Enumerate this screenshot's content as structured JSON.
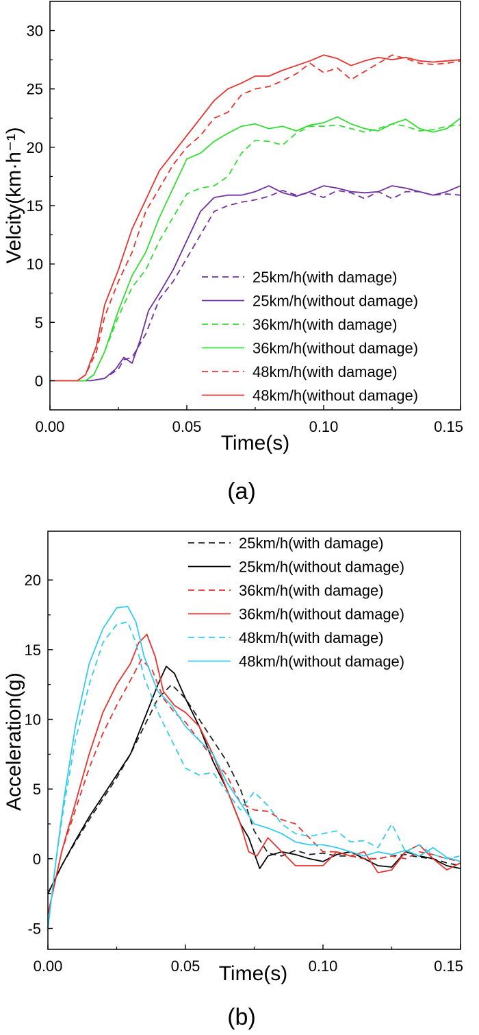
{
  "chart_data": [
    {
      "type": "line",
      "panel_label": "(a)",
      "title": "",
      "xlabel": "Time(s)",
      "ylabel": "Velcity(km·h⁻¹)",
      "xlim": [
        0,
        0.15
      ],
      "ylim": [
        -2.5,
        32.5
      ],
      "xticks": [
        "0.00",
        "0.05",
        "0.10",
        "0.15"
      ],
      "yticks": [
        "0",
        "5",
        "10",
        "15",
        "20",
        "25",
        "30"
      ],
      "xtick_values": [
        0,
        0.05,
        0.1,
        0.15
      ],
      "ytick_values": [
        0,
        5,
        10,
        15,
        20,
        25,
        30
      ],
      "legend_position": "bottom-right",
      "grid": false,
      "series": [
        {
          "name": "25km/h(with damage)",
          "color": "#7030a0",
          "dash": true,
          "x": [
            0,
            0.015,
            0.02,
            0.025,
            0.027,
            0.03,
            0.035,
            0.04,
            0.045,
            0.05,
            0.055,
            0.06,
            0.065,
            0.07,
            0.075,
            0.08,
            0.085,
            0.09,
            0.095,
            0.1,
            0.105,
            0.11,
            0.115,
            0.12,
            0.125,
            0.13,
            0.135,
            0.14,
            0.145,
            0.15
          ],
          "y": [
            0,
            0,
            0.2,
            1,
            1.8,
            2,
            4,
            7,
            8.5,
            10.5,
            12.5,
            14.5,
            15,
            15.3,
            15.5,
            15.8,
            16.3,
            15.9,
            16.1,
            15.7,
            16.3,
            16.1,
            15.6,
            16.2,
            15.6,
            16.2,
            16.2,
            15.9,
            16.0,
            15.9
          ]
        },
        {
          "name": "25km/h(without damage)",
          "color": "#7030a0",
          "dash": false,
          "x": [
            0,
            0.015,
            0.02,
            0.024,
            0.027,
            0.03,
            0.033,
            0.036,
            0.04,
            0.045,
            0.05,
            0.055,
            0.06,
            0.065,
            0.07,
            0.075,
            0.08,
            0.085,
            0.09,
            0.095,
            0.1,
            0.105,
            0.11,
            0.115,
            0.12,
            0.125,
            0.13,
            0.135,
            0.14,
            0.145,
            0.15
          ],
          "y": [
            0,
            0,
            0.2,
            1,
            2,
            1.5,
            3.5,
            6,
            7.5,
            9.5,
            12,
            14.5,
            15.7,
            15.9,
            15.9,
            16.2,
            16.7,
            16.1,
            15.8,
            16.2,
            16.7,
            16.5,
            16.2,
            16.1,
            16.2,
            16.7,
            16.5,
            16.2,
            15.9,
            16.2,
            16.7
          ]
        },
        {
          "name": "36km/h(with damage)",
          "color": "#33dd33",
          "dash": true,
          "x": [
            0,
            0.013,
            0.016,
            0.02,
            0.025,
            0.03,
            0.035,
            0.04,
            0.045,
            0.05,
            0.055,
            0.06,
            0.065,
            0.07,
            0.075,
            0.08,
            0.085,
            0.09,
            0.095,
            0.1,
            0.105,
            0.11,
            0.115,
            0.12,
            0.125,
            0.13,
            0.135,
            0.14,
            0.145,
            0.15
          ],
          "y": [
            0,
            0,
            0.5,
            2.5,
            5.5,
            8,
            9.5,
            12,
            14,
            16,
            16.5,
            16.7,
            17.5,
            19.5,
            20.6,
            20.5,
            20.2,
            21.2,
            21.8,
            21.8,
            21.9,
            21.6,
            21.3,
            21.6,
            22.0,
            21.8,
            21.4,
            21.5,
            21.8,
            21.9
          ]
        },
        {
          "name": "36km/h(without damage)",
          "color": "#33dd33",
          "dash": false,
          "x": [
            0,
            0.013,
            0.016,
            0.02,
            0.025,
            0.03,
            0.035,
            0.04,
            0.045,
            0.05,
            0.055,
            0.06,
            0.065,
            0.07,
            0.075,
            0.08,
            0.085,
            0.09,
            0.095,
            0.1,
            0.105,
            0.11,
            0.115,
            0.12,
            0.125,
            0.13,
            0.135,
            0.14,
            0.145,
            0.15
          ],
          "y": [
            0,
            0,
            0.5,
            2.5,
            6,
            9,
            11,
            14,
            16.5,
            19,
            19.5,
            20.5,
            21.2,
            21.8,
            22.0,
            21.6,
            21.8,
            21.4,
            21.9,
            22.1,
            22.6,
            22.0,
            21.6,
            21.4,
            22.0,
            22.4,
            21.6,
            21.3,
            21.6,
            22.5
          ]
        },
        {
          "name": "48km/h(with damage)",
          "color": "#e8322e",
          "dash": true,
          "x": [
            0,
            0.01,
            0.013,
            0.017,
            0.02,
            0.025,
            0.03,
            0.035,
            0.04,
            0.045,
            0.05,
            0.055,
            0.06,
            0.065,
            0.07,
            0.075,
            0.08,
            0.085,
            0.09,
            0.095,
            0.1,
            0.105,
            0.11,
            0.115,
            0.12,
            0.125,
            0.13,
            0.135,
            0.14,
            0.145,
            0.15
          ],
          "y": [
            0,
            0,
            0.5,
            2.5,
            5.5,
            8.5,
            11,
            14.5,
            16.5,
            18.5,
            20,
            21,
            22.5,
            23,
            24.5,
            25,
            25.2,
            25.7,
            26.3,
            27.2,
            26.4,
            26.8,
            25.8,
            26.5,
            27.2,
            27.9,
            27.6,
            27.2,
            27.1,
            27.2,
            27.4
          ]
        },
        {
          "name": "48km/h(without damage)",
          "color": "#e8322e",
          "dash": false,
          "x": [
            0,
            0.01,
            0.013,
            0.017,
            0.02,
            0.025,
            0.03,
            0.035,
            0.04,
            0.045,
            0.05,
            0.055,
            0.06,
            0.065,
            0.07,
            0.075,
            0.08,
            0.085,
            0.09,
            0.095,
            0.1,
            0.105,
            0.11,
            0.115,
            0.12,
            0.125,
            0.13,
            0.135,
            0.14,
            0.145,
            0.15
          ],
          "y": [
            0,
            0,
            0.5,
            3,
            6.5,
            9.5,
            13,
            15.5,
            18,
            19.5,
            21,
            22.5,
            24,
            25,
            25.5,
            26.1,
            26.1,
            26.6,
            27.0,
            27.4,
            27.9,
            27.6,
            27.0,
            27.4,
            27.7,
            27.5,
            27.7,
            27.4,
            27.3,
            27.4,
            27.5
          ]
        }
      ]
    },
    {
      "type": "line",
      "panel_label": "(b)",
      "title": "",
      "xlabel": "Time(s)",
      "ylabel": "Acceleration(g)",
      "xlim": [
        0,
        0.15
      ],
      "ylim": [
        -6.5,
        23.5
      ],
      "xticks": [
        "0.00",
        "0.05",
        "0.10",
        "0.15"
      ],
      "yticks": [
        "-5",
        "0",
        "5",
        "10",
        "15",
        "20"
      ],
      "xtick_values": [
        0,
        0.05,
        0.1,
        0.15
      ],
      "ytick_values": [
        -5,
        0,
        5,
        10,
        15,
        20
      ],
      "legend_position": "top-right",
      "grid": false,
      "series": [
        {
          "name": "25km/h(with damage)",
          "color": "#222222",
          "dash": true,
          "x": [
            0,
            0.005,
            0.01,
            0.015,
            0.02,
            0.025,
            0.03,
            0.035,
            0.04,
            0.045,
            0.05,
            0.055,
            0.06,
            0.065,
            0.07,
            0.075,
            0.08,
            0.085,
            0.09,
            0.095,
            0.1,
            0.105,
            0.11,
            0.115,
            0.12,
            0.125,
            0.13,
            0.135,
            0.14,
            0.145,
            0.15
          ],
          "y": [
            -2.5,
            -0.5,
            1.2,
            2.8,
            4.3,
            5.8,
            7.5,
            9.5,
            11.5,
            12.5,
            11.5,
            10,
            8.5,
            7,
            5,
            2,
            0.4,
            0.2,
            0.6,
            0.3,
            0.4,
            0.2,
            0.2,
            0,
            0,
            0.2,
            0.3,
            0.1,
            0,
            -0.3,
            -0.5
          ]
        },
        {
          "name": "25km/h(without damage)",
          "color": "#000000",
          "dash": false,
          "x": [
            0,
            0.005,
            0.01,
            0.015,
            0.02,
            0.025,
            0.03,
            0.035,
            0.04,
            0.043,
            0.046,
            0.05,
            0.055,
            0.06,
            0.065,
            0.07,
            0.073,
            0.077,
            0.08,
            0.085,
            0.09,
            0.095,
            0.1,
            0.105,
            0.11,
            0.115,
            0.12,
            0.125,
            0.13,
            0.135,
            0.14,
            0.145,
            0.15
          ],
          "y": [
            -2.5,
            -0.5,
            1.3,
            3,
            4.5,
            6,
            7.5,
            10,
            12.5,
            13.8,
            13.3,
            11.5,
            9.5,
            7,
            5,
            2.5,
            1.5,
            -0.7,
            0.2,
            0.5,
            0.3,
            0,
            -0.2,
            0.3,
            0.5,
            0,
            -0.5,
            -0.6,
            0.5,
            0.2,
            0,
            -0.5,
            -0.7
          ]
        },
        {
          "name": "36km/h(with damage)",
          "color": "#e8322e",
          "dash": true,
          "x": [
            0,
            0.005,
            0.01,
            0.015,
            0.02,
            0.025,
            0.03,
            0.034,
            0.038,
            0.042,
            0.046,
            0.05,
            0.055,
            0.06,
            0.065,
            0.07,
            0.075,
            0.08,
            0.085,
            0.09,
            0.095,
            0.1,
            0.105,
            0.11,
            0.115,
            0.12,
            0.125,
            0.13,
            0.135,
            0.14,
            0.145,
            0.15
          ],
          "y": [
            -4,
            0.5,
            3.5,
            6.5,
            9,
            11,
            12.8,
            14.3,
            13.5,
            11.5,
            10.5,
            9.8,
            8.5,
            7.2,
            6,
            4,
            3.5,
            3.4,
            2.8,
            2.5,
            1.5,
            0.5,
            0.5,
            0.2,
            0,
            0,
            0.2,
            0,
            0.5,
            0.3,
            0,
            -0.2
          ]
        },
        {
          "name": "36km/h(without damage)",
          "color": "#e8322e",
          "dash": false,
          "x": [
            0,
            0.005,
            0.01,
            0.015,
            0.02,
            0.025,
            0.03,
            0.033,
            0.036,
            0.039,
            0.042,
            0.046,
            0.05,
            0.055,
            0.06,
            0.065,
            0.07,
            0.073,
            0.076,
            0.08,
            0.085,
            0.09,
            0.095,
            0.1,
            0.105,
            0.11,
            0.115,
            0.12,
            0.125,
            0.13,
            0.135,
            0.14,
            0.145,
            0.15
          ],
          "y": [
            -4,
            0.5,
            4,
            7.5,
            10.5,
            12.5,
            14,
            15.5,
            16.1,
            14.5,
            12,
            11,
            10.5,
            9.5,
            7.5,
            5,
            2.5,
            0.5,
            0.2,
            1.5,
            0.5,
            -0.5,
            -0.5,
            -0.5,
            0.5,
            0.2,
            0.5,
            -1,
            -0.8,
            0.5,
            1,
            0,
            -0.8,
            -0.3
          ]
        },
        {
          "name": "48km/h(with damage)",
          "color": "#33ccee",
          "dash": true,
          "x": [
            0,
            0.003,
            0.006,
            0.01,
            0.015,
            0.02,
            0.025,
            0.029,
            0.032,
            0.035,
            0.04,
            0.045,
            0.05,
            0.055,
            0.06,
            0.065,
            0.07,
            0.075,
            0.08,
            0.085,
            0.09,
            0.095,
            0.1,
            0.105,
            0.11,
            0.115,
            0.12,
            0.125,
            0.13,
            0.135,
            0.14,
            0.145,
            0.15
          ],
          "y": [
            -5,
            0,
            4,
            8.5,
            12.5,
            15.5,
            16.8,
            17.0,
            15.5,
            13,
            10.5,
            8.5,
            6.5,
            6.0,
            6.2,
            4.8,
            3.5,
            4.8,
            3.8,
            2.5,
            1.8,
            1.6,
            1.8,
            2.0,
            1.2,
            1.3,
            0.8,
            2.5,
            0.5,
            1,
            0.3,
            0,
            0.2
          ]
        },
        {
          "name": "48km/h(without damage)",
          "color": "#33ccee",
          "dash": false,
          "x": [
            0,
            0.003,
            0.006,
            0.01,
            0.015,
            0.02,
            0.025,
            0.029,
            0.032,
            0.035,
            0.04,
            0.045,
            0.05,
            0.055,
            0.06,
            0.065,
            0.07,
            0.075,
            0.08,
            0.085,
            0.09,
            0.095,
            0.1,
            0.105,
            0.11,
            0.115,
            0.12,
            0.125,
            0.13,
            0.135,
            0.14,
            0.145,
            0.15
          ],
          "y": [
            -5,
            0,
            4.5,
            9.5,
            14,
            16.5,
            18.0,
            18.1,
            17,
            14.5,
            12,
            11,
            9.5,
            8.5,
            7.5,
            5.5,
            4.0,
            2.5,
            2.2,
            1.8,
            1.2,
            1.0,
            1.0,
            0.8,
            0.5,
            0.2,
            0.5,
            0.3,
            0.6,
            0.2,
            0.8,
            0.1,
            -0.2
          ]
        }
      ]
    }
  ]
}
